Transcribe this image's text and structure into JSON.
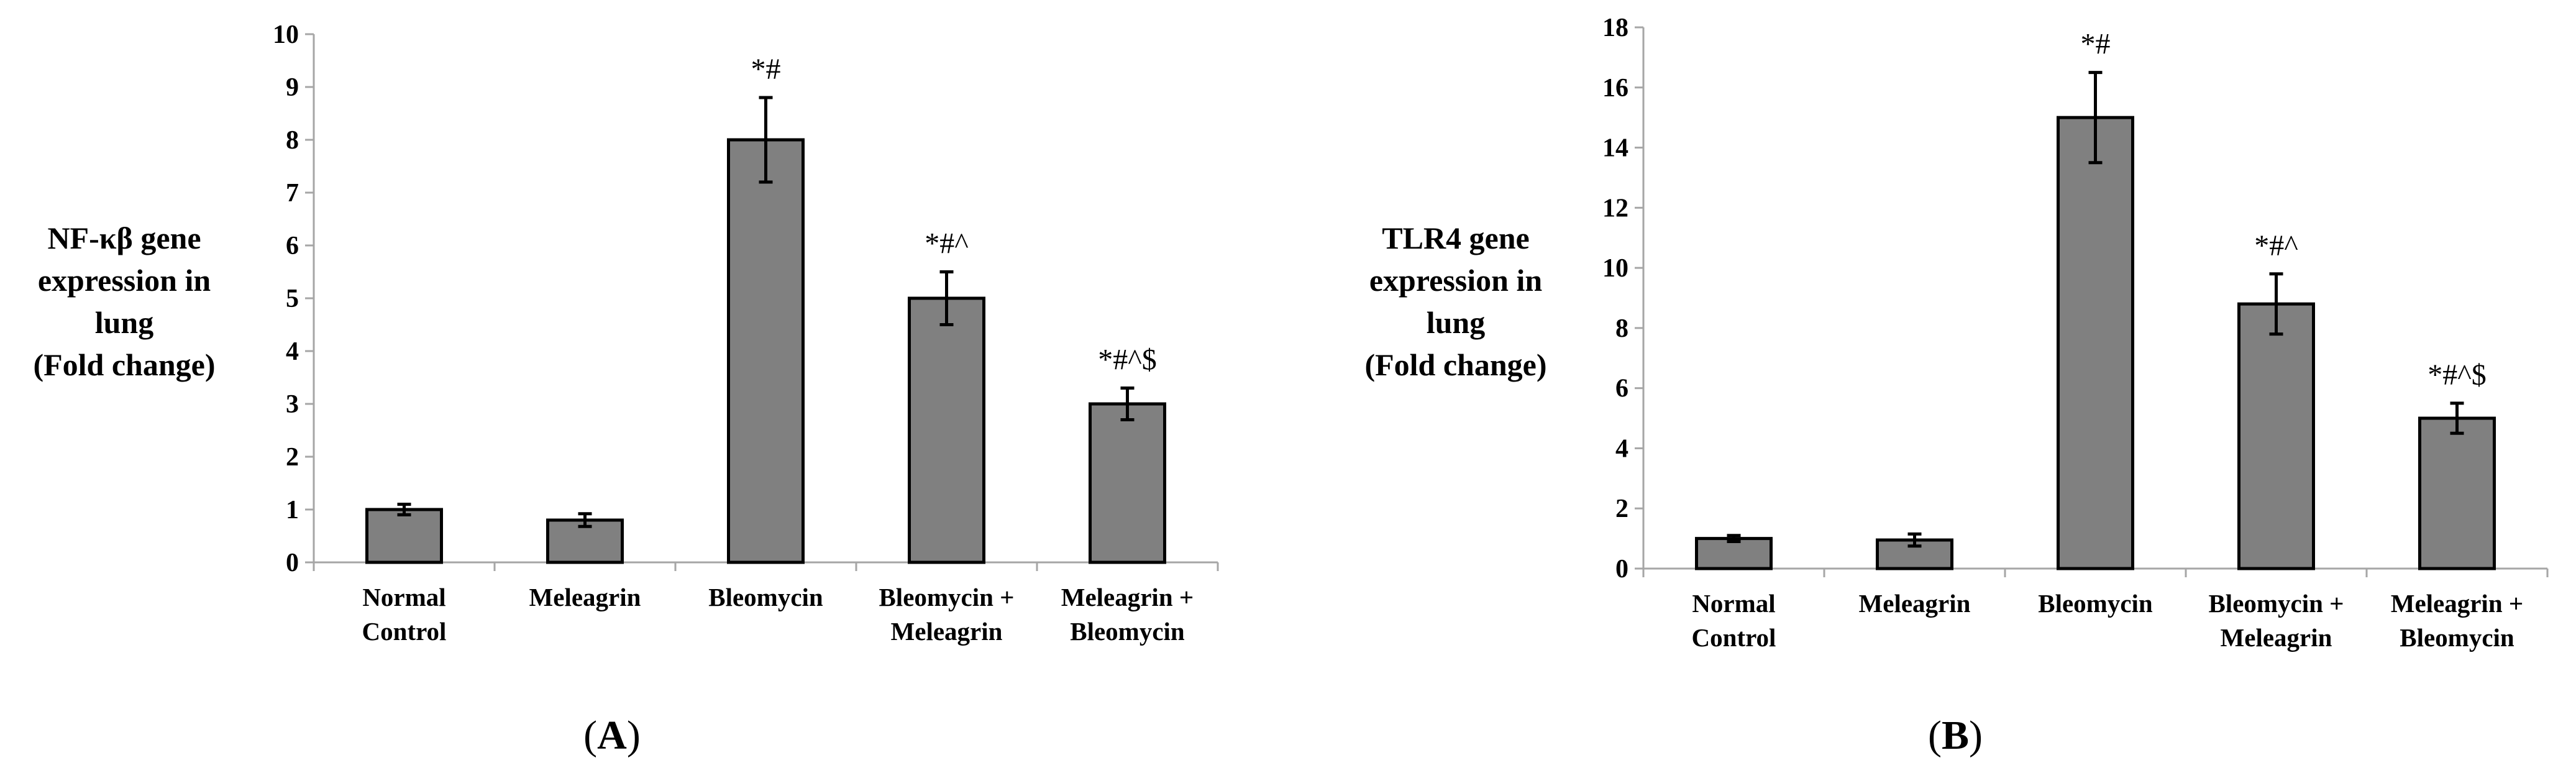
{
  "chart_data": [
    {
      "type": "bar",
      "panel": "A",
      "ylabel_lines": [
        "NF-κβ gene",
        "expression in",
        "lung",
        "(Fold change)"
      ],
      "categories": [
        [
          "Normal",
          "Control"
        ],
        [
          "Meleagrin"
        ],
        [
          "Bleomycin"
        ],
        [
          "Bleomycin +",
          "Meleagrin"
        ],
        [
          "Meleagrin +",
          "Bleomycin"
        ]
      ],
      "values": [
        1.0,
        0.8,
        8.0,
        5.0,
        3.0
      ],
      "errors": [
        0.1,
        0.12,
        0.8,
        0.5,
        0.3
      ],
      "annotations": [
        "",
        "",
        "*#",
        "*#^",
        "*#^$"
      ],
      "ylim": [
        0,
        10
      ],
      "yticks": [
        0,
        1,
        2,
        3,
        4,
        5,
        6,
        7,
        8,
        9,
        10
      ],
      "bar_color": "#808080",
      "grid": false
    },
    {
      "type": "bar",
      "panel": "B",
      "ylabel_lines": [
        "TLR4 gene",
        "expression in",
        "lung",
        "(Fold change)"
      ],
      "categories": [
        [
          "Normal",
          "Control"
        ],
        [
          "Meleagrin"
        ],
        [
          "Bleomycin"
        ],
        [
          "Bleomycin +",
          "Meleagrin"
        ],
        [
          "Meleagrin +",
          "Bleomycin"
        ]
      ],
      "values": [
        1.0,
        0.95,
        15.0,
        8.8,
        5.0
      ],
      "errors": [
        0.1,
        0.2,
        1.5,
        1.0,
        0.5
      ],
      "annotations": [
        "",
        "",
        "*#",
        "*#^",
        "*#^$"
      ],
      "ylim": [
        0,
        18
      ],
      "yticks": [
        0,
        2,
        4,
        6,
        8,
        10,
        12,
        14,
        16,
        18
      ],
      "bar_color": "#808080",
      "grid": false
    }
  ]
}
